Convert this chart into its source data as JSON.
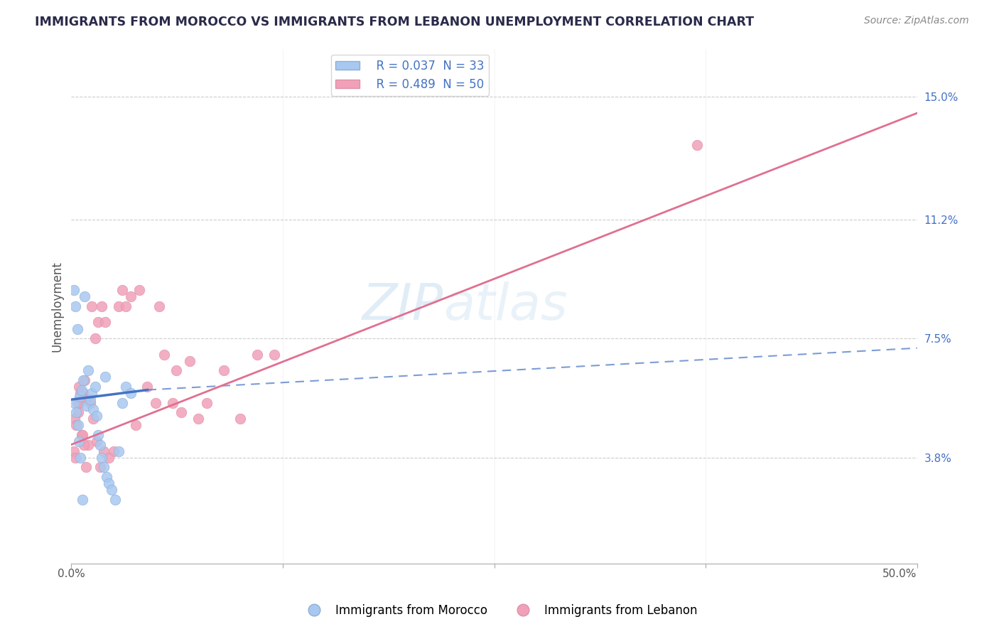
{
  "title": "IMMIGRANTS FROM MOROCCO VS IMMIGRANTS FROM LEBANON UNEMPLOYMENT CORRELATION CHART",
  "source": "Source: ZipAtlas.com",
  "ylabel": "Unemployment",
  "ytick_values": [
    3.8,
    7.5,
    11.2,
    15.0
  ],
  "xlim": [
    0.0,
    50.0
  ],
  "ylim": [
    0.5,
    16.5
  ],
  "ymin_data": 1.5,
  "ymax_data": 15.5,
  "color_morocco": "#a8c8f0",
  "color_lebanon": "#f0a0b8",
  "color_morocco_line": "#4472c4",
  "color_lebanon_line": "#e07090",
  "morocco_R": 0.037,
  "morocco_N": 33,
  "lebanon_R": 0.489,
  "lebanon_N": 50,
  "morocco_line_x0": 0.0,
  "morocco_line_x1": 4.5,
  "morocco_line_y0": 5.6,
  "morocco_line_y1": 5.9,
  "morocco_dash_x0": 4.5,
  "morocco_dash_x1": 50.0,
  "morocco_dash_y0": 5.9,
  "morocco_dash_y1": 7.2,
  "lebanon_line_x0": 0.0,
  "lebanon_line_x1": 50.0,
  "lebanon_line_y0": 4.2,
  "lebanon_line_y1": 14.5,
  "morocco_scatter_x": [
    0.2,
    0.3,
    0.4,
    0.5,
    0.6,
    0.7,
    0.8,
    0.9,
    1.0,
    1.1,
    1.2,
    1.3,
    1.4,
    1.5,
    1.6,
    1.7,
    1.8,
    1.9,
    2.0,
    2.1,
    2.2,
    2.4,
    2.6,
    2.8,
    3.0,
    3.2,
    3.5,
    0.15,
    0.25,
    0.35,
    0.45,
    0.55,
    0.65
  ],
  "morocco_scatter_y": [
    5.5,
    5.2,
    4.8,
    5.7,
    5.9,
    6.2,
    8.8,
    5.4,
    6.5,
    5.6,
    5.8,
    5.3,
    6.0,
    5.1,
    4.5,
    4.2,
    3.8,
    3.5,
    6.3,
    3.2,
    3.0,
    2.8,
    2.5,
    4.0,
    5.5,
    6.0,
    5.8,
    9.0,
    8.5,
    7.8,
    4.3,
    3.8,
    2.5
  ],
  "lebanon_scatter_x": [
    0.2,
    0.3,
    0.4,
    0.5,
    0.6,
    0.7,
    0.8,
    0.9,
    1.0,
    1.2,
    1.4,
    1.5,
    1.6,
    1.8,
    2.0,
    2.5,
    3.0,
    3.5,
    4.0,
    5.0,
    5.5,
    6.0,
    6.5,
    7.0,
    0.15,
    0.25,
    0.35,
    0.45,
    0.55,
    0.65,
    0.75,
    0.85,
    1.1,
    1.3,
    1.7,
    1.9,
    2.2,
    2.8,
    3.2,
    3.8,
    4.5,
    5.2,
    6.2,
    7.5,
    8.0,
    9.0,
    10.0,
    11.0,
    37.0,
    12.0
  ],
  "lebanon_scatter_y": [
    5.0,
    4.8,
    5.2,
    5.5,
    4.5,
    5.8,
    6.2,
    5.6,
    4.2,
    8.5,
    7.5,
    4.3,
    8.0,
    8.5,
    8.0,
    4.0,
    9.0,
    8.8,
    9.0,
    5.5,
    7.0,
    5.5,
    5.2,
    6.8,
    4.0,
    3.8,
    5.5,
    6.0,
    5.8,
    4.5,
    4.2,
    3.5,
    5.5,
    5.0,
    3.5,
    4.0,
    3.8,
    8.5,
    8.5,
    4.8,
    6.0,
    8.5,
    6.5,
    5.0,
    5.5,
    6.5,
    5.0,
    7.0,
    13.5,
    7.0
  ]
}
